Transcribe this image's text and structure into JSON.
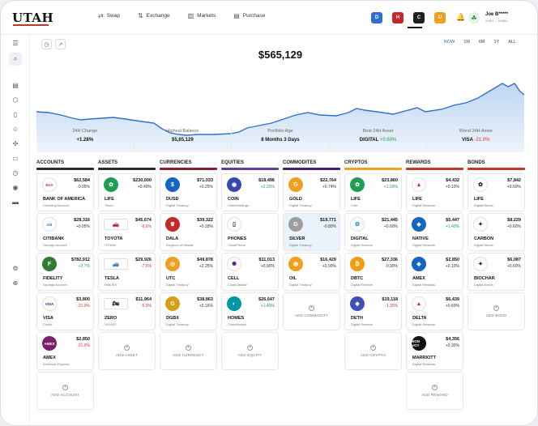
{
  "app": {
    "logo": "UTAH"
  },
  "nav": [
    {
      "label": "Swap",
      "icon": "⇄"
    },
    {
      "label": "Exchange",
      "icon": "⇅"
    },
    {
      "label": "Markets",
      "icon": "▥"
    },
    {
      "label": "Purchase",
      "icon": "▤"
    }
  ],
  "accounts": [
    {
      "letter": "D",
      "color": "#2f6fd0"
    },
    {
      "letter": "H",
      "color": "#c62828"
    },
    {
      "letter": "C",
      "color": "#1f1f1f"
    },
    {
      "letter": "U",
      "color": "#f0a020"
    }
  ],
  "user": {
    "name": "Joe B*****",
    "sub": "0X8.6 ... 0X860"
  },
  "hero": {
    "balance": "$565,129",
    "ranges": [
      "NOW",
      "1M",
      "6M",
      "1Y",
      "ALL"
    ],
    "active_range": "NOW"
  },
  "stats": [
    {
      "label": "24H Change",
      "value": "+1.28%",
      "tone": "pos",
      "prefix": ""
    },
    {
      "label": "Highest Balance",
      "value": "$5,65,129",
      "tone": "",
      "prefix": ""
    },
    {
      "label": "Portfolio Age",
      "value": "8 Months 3 Days",
      "tone": "",
      "prefix": ""
    },
    {
      "label": "Best 24H Asset",
      "value": "+0.60%",
      "tone": "pos",
      "prefix": "DIGITAL "
    },
    {
      "label": "Worst 24H Asset",
      "value": "-21.0%",
      "tone": "neg",
      "prefix": "VISA "
    }
  ],
  "columns": [
    {
      "title": "ACCOUNTS",
      "bar": "#2b2b2b",
      "add": "ADD ACCOUNT",
      "cards": [
        {
          "name": "BANK OF AMERICA",
          "sub": "Checking Account",
          "amount": "$62,584",
          "change": "-0.05%",
          "tone": "",
          "logo": "BoA",
          "logo_bg": "#fff",
          "logo_fg": "#c0392b",
          "icon": "bank-of-america-logo"
        },
        {
          "name": "CITIBANK",
          "sub": "Savings Account",
          "amount": "$28,316",
          "change": "+0.05%",
          "tone": "",
          "logo": "citi",
          "logo_bg": "#fff",
          "logo_fg": "#1565c0",
          "icon": "citibank-logo"
        },
        {
          "name": "FIDELITY",
          "sub": "Savings Account",
          "amount": "$782,912",
          "change": "+2.7%",
          "tone": "pos",
          "logo": "F",
          "logo_bg": "#2e7d32",
          "logo_fg": "#fff",
          "icon": "fidelity-logo"
        },
        {
          "name": "VISA",
          "sub": "Chase",
          "amount": "$3,800",
          "change": "-21.0%",
          "tone": "neg",
          "logo": "VISA",
          "logo_bg": "#fff",
          "logo_fg": "#1a237e",
          "icon": "visa-logo"
        },
        {
          "name": "AMEX",
          "sub": "American Express",
          "amount": "$2,850",
          "change": "-21.0%",
          "tone": "neg",
          "logo": "AMEX",
          "logo_bg": "#7b1f6a",
          "logo_fg": "#fff",
          "icon": "amex-logo"
        }
      ]
    },
    {
      "title": "ASSETS",
      "bar": "#2b2b2b",
      "add": "ADD ASSET",
      "cards": [
        {
          "name": "LIFE",
          "sub": "Token",
          "amount": "$230,000",
          "change": "+0.40%",
          "tone": "",
          "logo": "✿",
          "logo_bg": "#1f9d55",
          "logo_fg": "#fff",
          "icon": "life-token-logo"
        },
        {
          "name": "TOYOTA",
          "sub": "HT0000",
          "amount": "$45,674",
          "change": "-6.6%",
          "tone": "neg",
          "logo": "🚗",
          "logo_bg": "#fff",
          "logo_fg": "#333",
          "icon": "car-icon",
          "rect": true
        },
        {
          "name": "TESLA",
          "sub": "PAB7ES",
          "amount": "$29,926",
          "change": "-7.6%",
          "tone": "neg",
          "logo": "🚙",
          "logo_bg": "#fff",
          "logo_fg": "#333",
          "icon": "car-icon",
          "rect": true
        },
        {
          "name": "ZERO",
          "sub": "SUV007",
          "amount": "$11,964",
          "change": "-5.0%",
          "tone": "neg",
          "logo": "🏍",
          "logo_bg": "#fff",
          "logo_fg": "#333",
          "icon": "motorcycle-icon",
          "rect": true
        }
      ]
    },
    {
      "title": "CURRENCIES",
      "bar": "#8b1e2b",
      "add": "ADD CURRENCY",
      "cards": [
        {
          "name": "DUSD",
          "sub": "Digital Treasury",
          "amount": "$71,033",
          "change": "+0.25%",
          "tone": "",
          "logo": "$",
          "logo_bg": "#1565c0",
          "logo_fg": "#fff",
          "icon": "dollar-coin-logo"
        },
        {
          "name": "DALA",
          "sub": "Kingdom of Hawaii",
          "amount": "$39,322",
          "change": "+0.18%",
          "tone": "",
          "logo": "♛",
          "logo_bg": "#c62828",
          "logo_fg": "#fff",
          "icon": "dala-coin-logo"
        },
        {
          "name": "UTC",
          "sub": "Digital Treasury",
          "amount": "$49,878",
          "change": "+2.25%",
          "tone": "",
          "logo": "◎",
          "logo_bg": "#f0a020",
          "logo_fg": "#fff",
          "icon": "utc-coin-logo"
        },
        {
          "name": "DGBX",
          "sub": "Digital Treasury",
          "amount": "$38,863",
          "change": "+0.16%",
          "tone": "",
          "logo": "G",
          "logo_bg": "#d4a017",
          "logo_fg": "#fff",
          "icon": "dgbx-coin-logo"
        }
      ]
    },
    {
      "title": "EQUITIES",
      "bar": "#6a3d9a",
      "add": "ADD EQUITY",
      "cards": [
        {
          "name": "COIN",
          "sub": "CloseHoldings",
          "amount": "$18,496",
          "change": "+2.20%",
          "tone": "pos",
          "logo": "◉",
          "logo_bg": "#3949ab",
          "logo_fg": "#fff",
          "icon": "coin-equity-logo"
        },
        {
          "name": "PHONES",
          "sub": "ClosePhone",
          "amount": "",
          "change": "",
          "tone": "",
          "logo": "▯",
          "logo_bg": "#fff",
          "logo_fg": "#222",
          "icon": "phone-icon"
        },
        {
          "name": "CELL",
          "sub": "CloseCellular",
          "amount": "$11,013",
          "change": "+0.90%",
          "tone": "",
          "logo": "✺",
          "logo_bg": "#fff",
          "logo_fg": "#6a1b9a",
          "icon": "cell-logo"
        },
        {
          "name": "HOMES",
          "sub": "CloseHomes",
          "amount": "$26,647",
          "change": "+1.40%",
          "tone": "pos",
          "logo": "◐",
          "logo_bg": "#0097a7",
          "logo_fg": "#fff",
          "icon": "homes-logo"
        }
      ]
    },
    {
      "title": "COMMODITES",
      "bar": "#4a1f6b",
      "add": "ADD COMMODITY",
      "cards": [
        {
          "name": "GOLD",
          "sub": "Digital Treasury",
          "amount": "$22,764",
          "change": "+0.74%",
          "tone": "",
          "logo": "G",
          "logo_bg": "#f0a020",
          "logo_fg": "#fff",
          "icon": "gold-logo"
        },
        {
          "name": "SILVER",
          "sub": "Digital Treasury",
          "amount": "$19,771",
          "change": "-0.80%",
          "tone": "",
          "logo": "G",
          "logo_bg": "#9e9e9e",
          "logo_fg": "#fff",
          "icon": "silver-logo",
          "highlight": true
        },
        {
          "name": "OIL",
          "sub": "Digital Treasury",
          "amount": "$16,429",
          "change": "+0.90%",
          "tone": "",
          "logo": "◍",
          "logo_bg": "#f0a020",
          "logo_fg": "#fff",
          "icon": "oil-logo"
        }
      ]
    },
    {
      "title": "CRYPTOS",
      "bar": "#f0a020",
      "add": "ADD CRYPTO",
      "cards": [
        {
          "name": "LIFE",
          "sub": "Coin",
          "amount": "$23,860",
          "change": "+1.60%",
          "tone": "pos",
          "logo": "✿",
          "logo_bg": "#1f9d55",
          "logo_fg": "#fff",
          "icon": "life-coin-logo"
        },
        {
          "name": "DIGITAL",
          "sub": "Digital Reserve",
          "amount": "$21,445",
          "change": "+0.60%",
          "tone": "",
          "logo": "⚙",
          "logo_bg": "#fff",
          "logo_fg": "#0097a7",
          "icon": "digital-logo"
        },
        {
          "name": "DBTC",
          "sub": "Digital Reserve",
          "amount": "$27,336",
          "change": "-0.90%",
          "tone": "",
          "logo": "₿",
          "logo_bg": "#f39c12",
          "logo_fg": "#fff",
          "icon": "bitcoin-logo"
        },
        {
          "name": "DETH",
          "sub": "Digital Reserve",
          "amount": "$19,118",
          "change": "-1.30%",
          "tone": "neg",
          "logo": "◆",
          "logo_bg": "#3f51b5",
          "logo_fg": "#fff",
          "icon": "ethereum-logo"
        }
      ]
    },
    {
      "title": "REWARDS",
      "bar": "#c0392b",
      "add": "ADD REWARD",
      "cards": [
        {
          "name": "LIFE",
          "sub": "Digital Rewards",
          "amount": "$4,432",
          "change": "+0.10%",
          "tone": "",
          "logo": "▲",
          "logo_bg": "#fff",
          "logo_fg": "#c0392b",
          "icon": "life-rewards-logo"
        },
        {
          "name": "NATIVE",
          "sub": "Digital Rewards",
          "amount": "$5,447",
          "change": "+1.40%",
          "tone": "pos",
          "logo": "◈",
          "logo_bg": "#1565c0",
          "logo_fg": "#fff",
          "icon": "native-logo"
        },
        {
          "name": "AMEX",
          "sub": "Digital Rewards",
          "amount": "$2,850",
          "change": "+0.10%",
          "tone": "",
          "logo": "◈",
          "logo_bg": "#1565c0",
          "logo_fg": "#fff",
          "icon": "amex-rewards-logo"
        },
        {
          "name": "DELTA",
          "sub": "Digital Rewards",
          "amount": "$6,439",
          "change": "+0.60%",
          "tone": "",
          "logo": "▲",
          "logo_bg": "#fff",
          "logo_fg": "#c0392b",
          "icon": "delta-logo"
        },
        {
          "name": "MARRIOTT",
          "sub": "Digital Rewards",
          "amount": "$4,356",
          "change": "+0.30%",
          "tone": "",
          "logo": "BON VOY",
          "logo_bg": "#111",
          "logo_fg": "#fff",
          "icon": "marriott-logo"
        }
      ]
    },
    {
      "title": "BONDS",
      "bar": "#c0392b",
      "add": "ADD BOND",
      "cards": [
        {
          "name": "LIFE",
          "sub": "Digital Bonds",
          "amount": "$7,842",
          "change": "+0.60%",
          "tone": "",
          "logo": "✿",
          "logo_bg": "#fff",
          "logo_fg": "#222",
          "icon": "life-bond-logo"
        },
        {
          "name": "CARBON",
          "sub": "Digital Bonds",
          "amount": "$8,229",
          "change": "+0.60%",
          "tone": "",
          "logo": "✦",
          "logo_bg": "#fff",
          "logo_fg": "#222",
          "icon": "carbon-logo"
        },
        {
          "name": "BIOCHAR",
          "sub": "Digital Bonds",
          "amount": "$6,087",
          "change": "+0.60%",
          "tone": "",
          "logo": "✦",
          "logo_bg": "#fff",
          "logo_fg": "#222",
          "icon": "biochar-logo"
        }
      ]
    }
  ]
}
